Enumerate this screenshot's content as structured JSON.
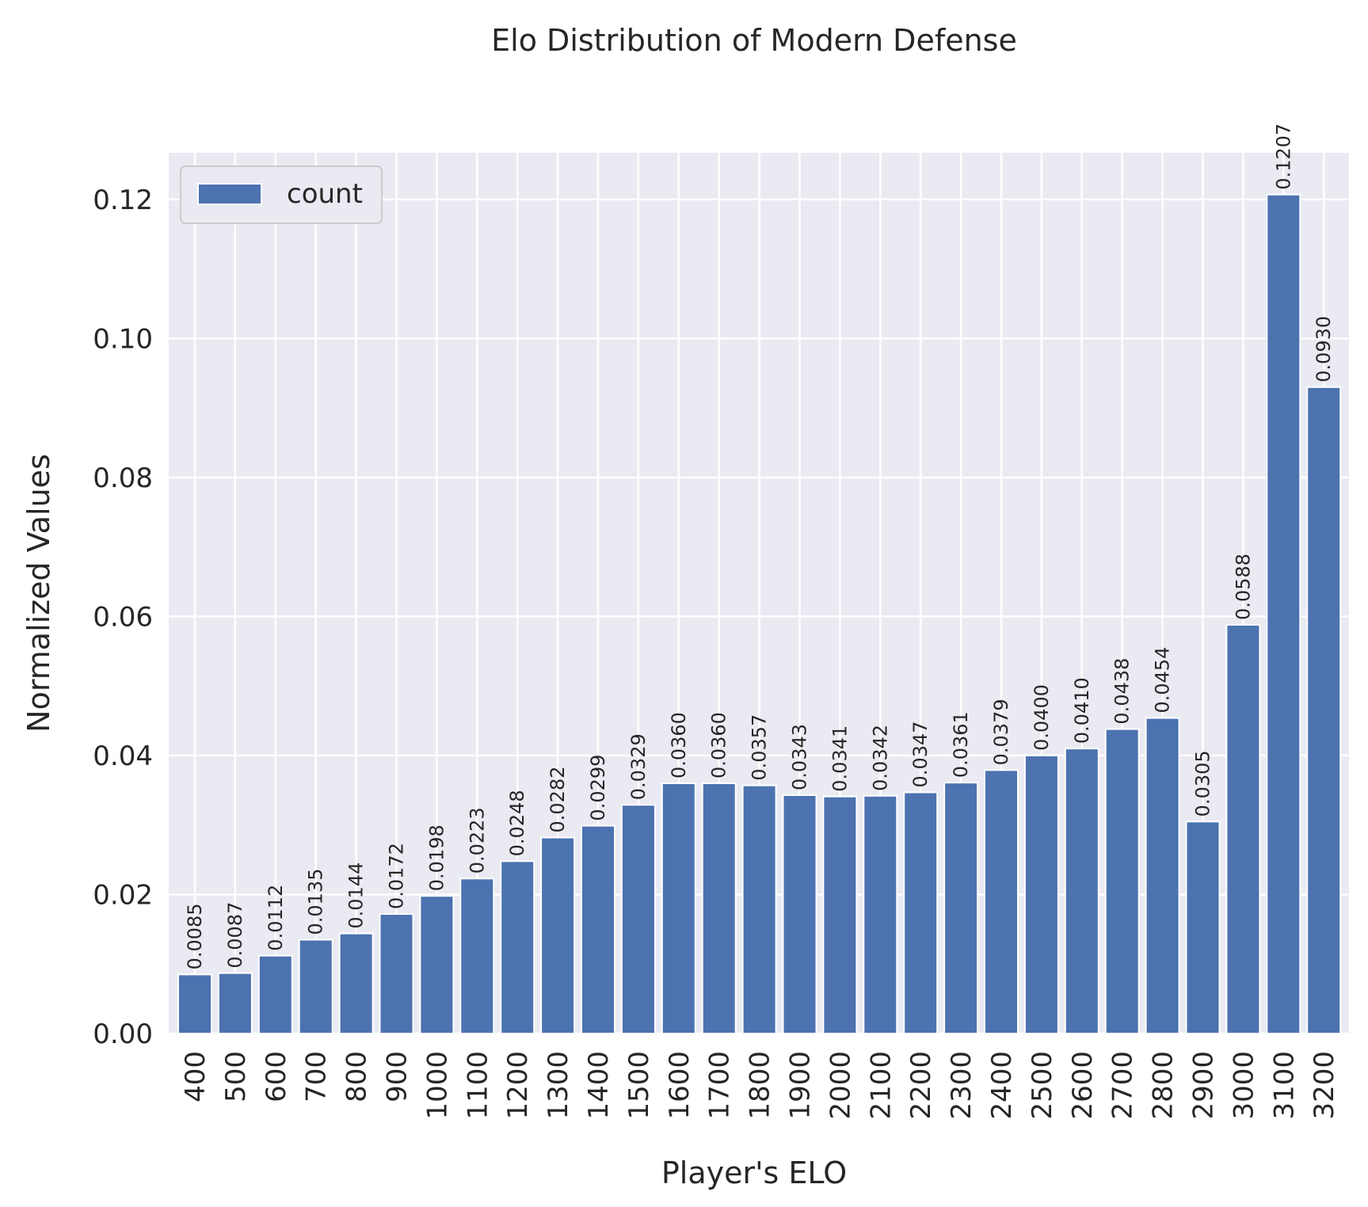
{
  "chart_data": {
    "type": "bar",
    "title": "Elo Distribution of Modern Defense",
    "xlabel": "Player's ELO",
    "ylabel": "Normalized Values",
    "categories": [
      "400",
      "500",
      "600",
      "700",
      "800",
      "900",
      "1000",
      "1100",
      "1200",
      "1300",
      "1400",
      "1500",
      "1600",
      "1700",
      "1800",
      "1900",
      "2000",
      "2100",
      "2200",
      "2300",
      "2400",
      "2500",
      "2600",
      "2700",
      "2800",
      "2900",
      "3000",
      "3100",
      "3200"
    ],
    "series": [
      {
        "name": "count",
        "color": "#4c72b0",
        "values": [
          0.0085,
          0.0087,
          0.0112,
          0.0135,
          0.0144,
          0.0172,
          0.0198,
          0.0223,
          0.0248,
          0.0282,
          0.0299,
          0.0329,
          0.036,
          0.036,
          0.0357,
          0.0343,
          0.0341,
          0.0342,
          0.0347,
          0.0361,
          0.0379,
          0.04,
          0.041,
          0.0438,
          0.0454,
          0.0305,
          0.0588,
          0.1207,
          0.093
        ],
        "labels": [
          "0.0085",
          "0.0087",
          "0.0112",
          "0.0135",
          "0.0144",
          "0.0172",
          "0.0198",
          "0.0223",
          "0.0248",
          "0.0282",
          "0.0299",
          "0.0329",
          "0.0360",
          "0.0360",
          "0.0357",
          "0.0343",
          "0.0341",
          "0.0342",
          "0.0347",
          "0.0361",
          "0.0379",
          "0.0400",
          "0.0410",
          "0.0438",
          "0.0454",
          "0.0305",
          "0.0588",
          "0.1207",
          "0.0930"
        ]
      }
    ],
    "ylim": [
      0,
      0.1267
    ],
    "yticks": [
      0.0,
      0.02,
      0.04,
      0.06,
      0.08,
      0.1,
      0.12
    ],
    "ytick_labels": [
      "0.00",
      "0.02",
      "0.04",
      "0.06",
      "0.08",
      "0.10",
      "0.12"
    ],
    "grid": true,
    "legend_position": "top-left",
    "background_color": "#eaeaf2"
  }
}
